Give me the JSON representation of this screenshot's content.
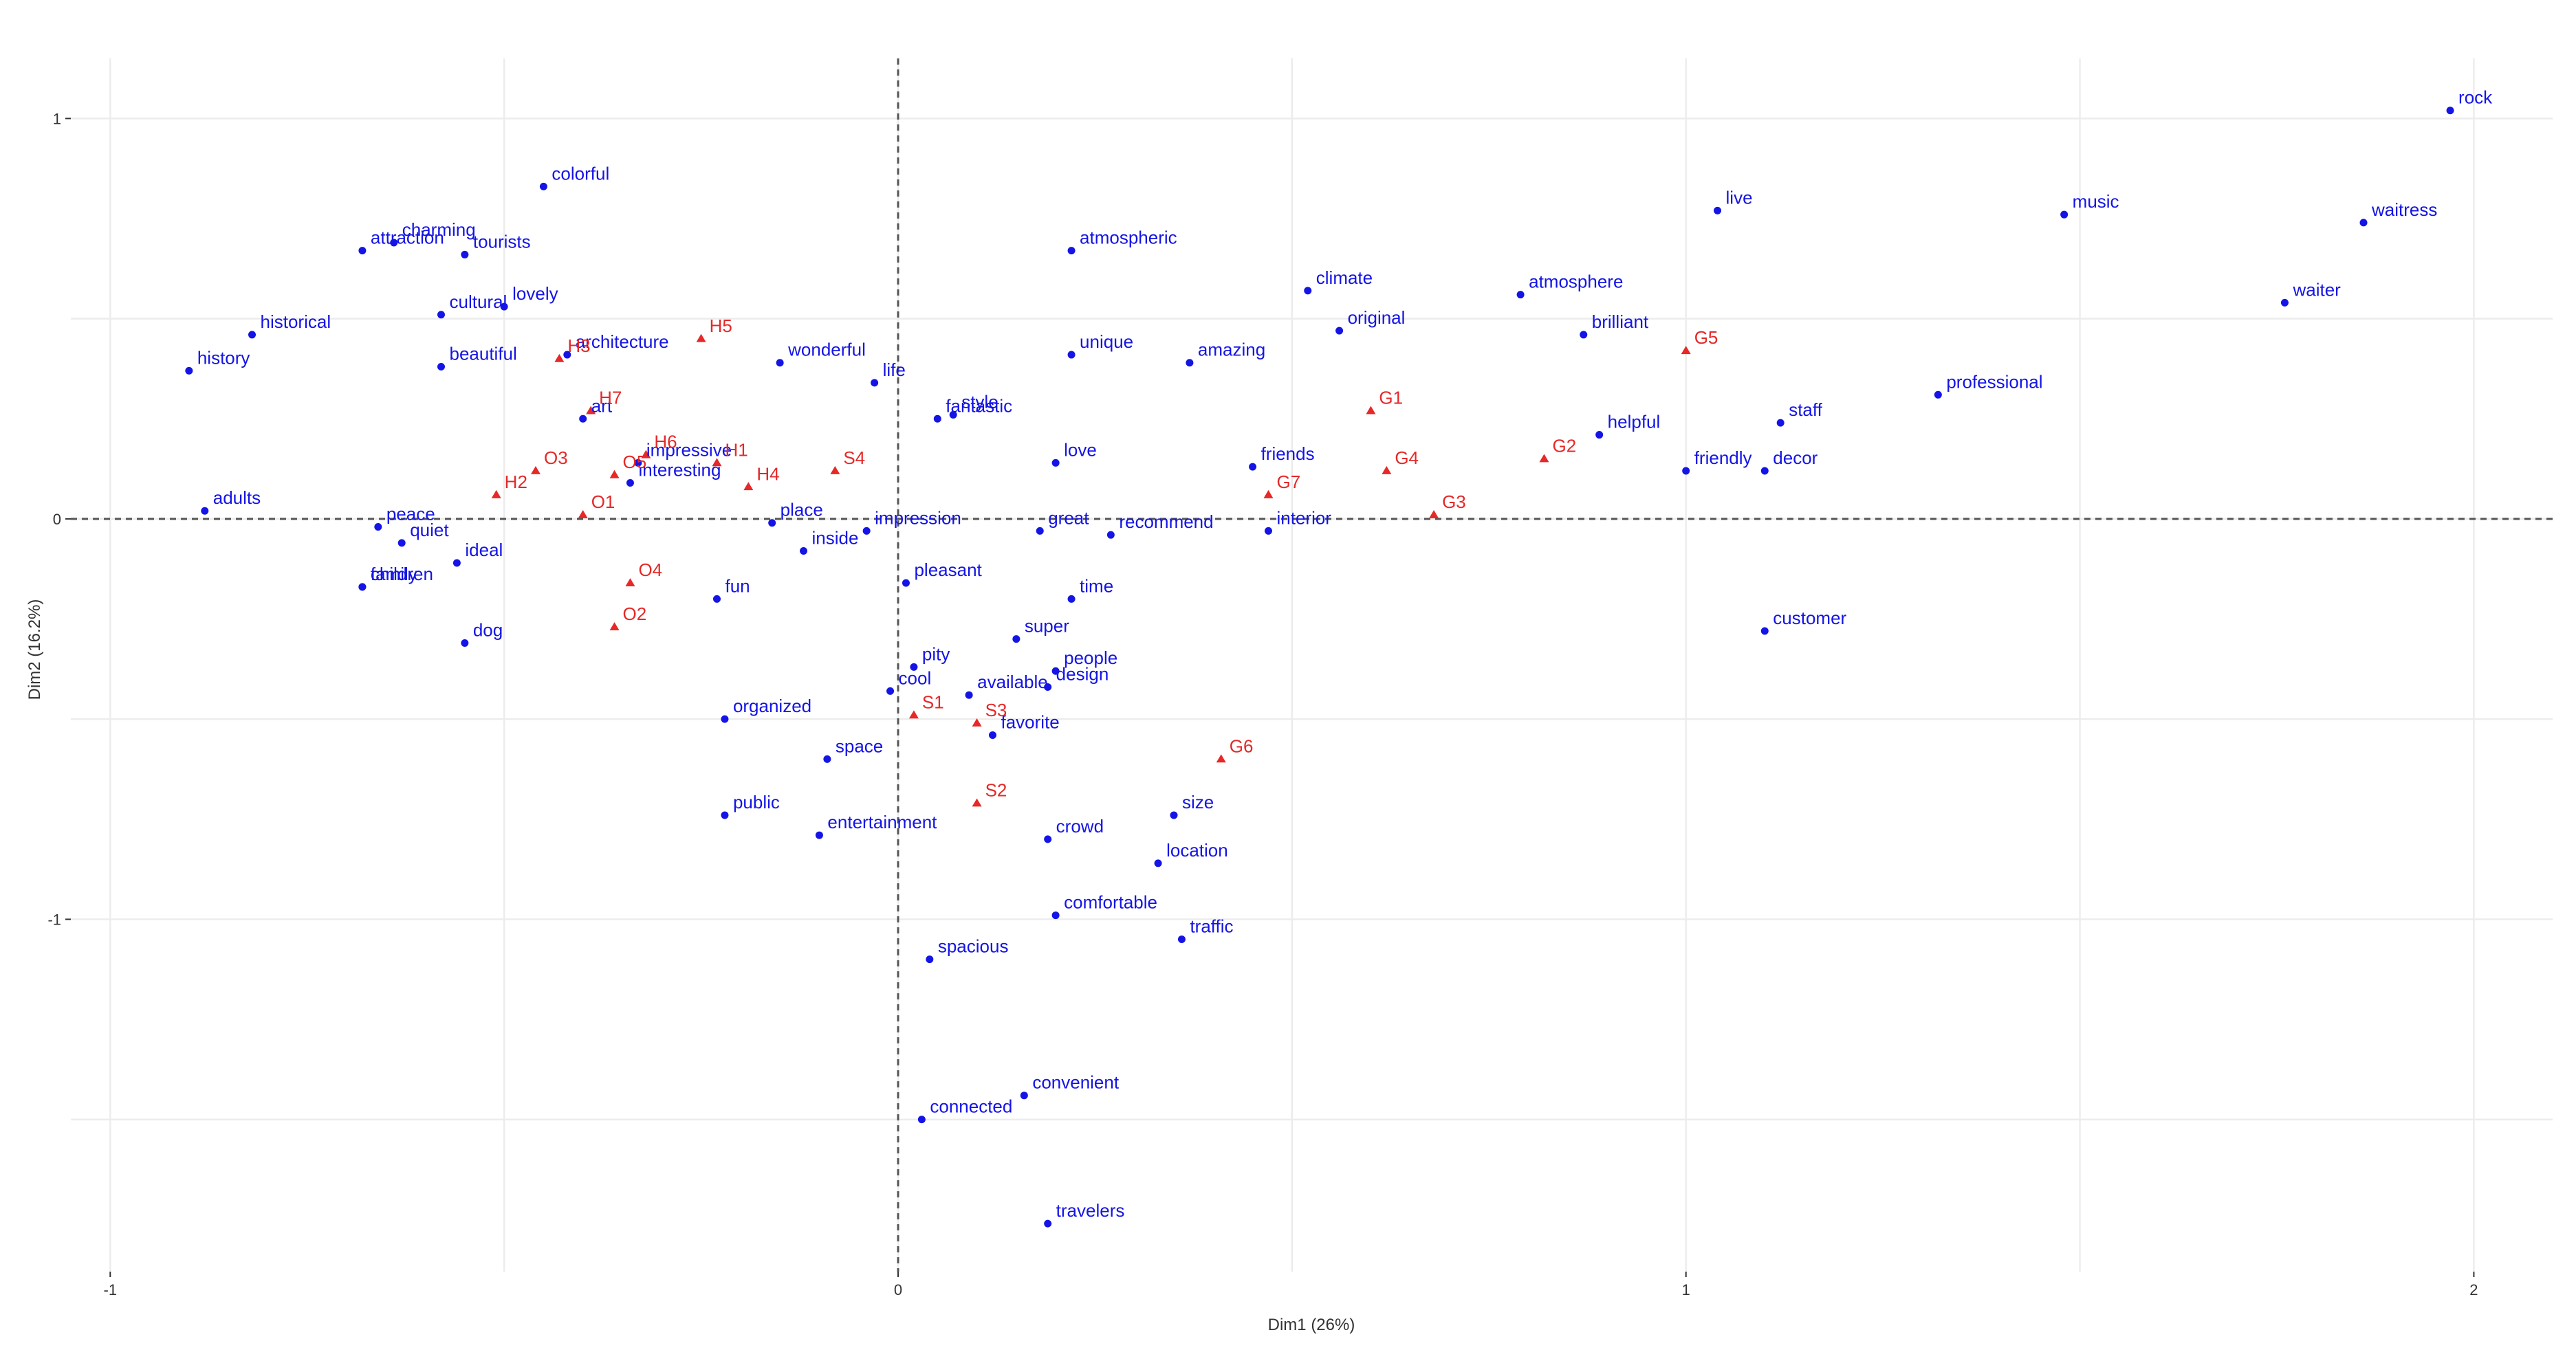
{
  "chart_data": {
    "type": "scatter",
    "title": "",
    "xlabel": "Dim1 (26%)",
    "ylabel": "Dim2 (16.2%)",
    "xlim": [
      -1.05,
      2.1
    ],
    "ylim": [
      -1.88,
      1.15
    ],
    "xticks": [
      -1,
      0,
      1,
      2
    ],
    "yticks": [
      -1,
      0,
      1
    ],
    "xtick_labels": [
      "-1",
      "0",
      "1",
      "2"
    ],
    "ytick_labels": [
      "-1",
      "0",
      "1"
    ],
    "grid": true,
    "zero_lines": true,
    "colors": {
      "words": "#1414e6",
      "groups": "#e62828"
    },
    "series": [
      {
        "marker": "circle",
        "color": "#1414e6",
        "points": [
          {
            "label": "rock",
            "x": 1.97,
            "y": 1.02
          },
          {
            "label": "music",
            "x": 1.48,
            "y": 0.76
          },
          {
            "label": "waitress",
            "x": 1.86,
            "y": 0.74
          },
          {
            "label": "waiter",
            "x": 1.76,
            "y": 0.54
          },
          {
            "label": "live",
            "x": 1.04,
            "y": 0.77
          },
          {
            "label": "professional",
            "x": 1.32,
            "y": 0.31
          },
          {
            "label": "staff",
            "x": 1.12,
            "y": 0.24
          },
          {
            "label": "decor",
            "x": 1.1,
            "y": 0.12
          },
          {
            "label": "friendly",
            "x": 1.0,
            "y": 0.12
          },
          {
            "label": "helpful",
            "x": 0.89,
            "y": 0.21
          },
          {
            "label": "brilliant",
            "x": 0.87,
            "y": 0.46
          },
          {
            "label": "atmosphere",
            "x": 0.79,
            "y": 0.56
          },
          {
            "label": "customer",
            "x": 1.1,
            "y": -0.28
          },
          {
            "label": "climate",
            "x": 0.52,
            "y": 0.57
          },
          {
            "label": "original",
            "x": 0.56,
            "y": 0.47
          },
          {
            "label": "amazing",
            "x": 0.37,
            "y": 0.39
          },
          {
            "label": "friends",
            "x": 0.45,
            "y": 0.13
          },
          {
            "label": "interior",
            "x": 0.47,
            "y": -0.03
          },
          {
            "label": "atmospheric",
            "x": 0.22,
            "y": 0.67
          },
          {
            "label": "unique",
            "x": 0.22,
            "y": 0.41
          },
          {
            "label": "love",
            "x": 0.2,
            "y": 0.14
          },
          {
            "label": "recommend",
            "x": 0.27,
            "y": -0.04
          },
          {
            "label": "great",
            "x": 0.18,
            "y": -0.03
          },
          {
            "label": "time",
            "x": 0.22,
            "y": -0.2
          },
          {
            "label": "super",
            "x": 0.15,
            "y": -0.3
          },
          {
            "label": "people",
            "x": 0.2,
            "y": -0.38
          },
          {
            "label": "design",
            "x": 0.19,
            "y": -0.42
          },
          {
            "label": "favorite",
            "x": 0.12,
            "y": -0.54
          },
          {
            "label": "crowd",
            "x": 0.19,
            "y": -0.8
          },
          {
            "label": "size",
            "x": 0.35,
            "y": -0.74
          },
          {
            "label": "location",
            "x": 0.33,
            "y": -0.86
          },
          {
            "label": "comfortable",
            "x": 0.2,
            "y": -0.99
          },
          {
            "label": "traffic",
            "x": 0.36,
            "y": -1.05
          },
          {
            "label": "spacious",
            "x": 0.04,
            "y": -1.1
          },
          {
            "label": "convenient",
            "x": 0.16,
            "y": -1.44
          },
          {
            "label": "connected",
            "x": 0.03,
            "y": -1.5
          },
          {
            "label": "travelers",
            "x": 0.19,
            "y": -1.76
          },
          {
            "label": "style",
            "x": 0.07,
            "y": 0.26
          },
          {
            "label": "fantastic",
            "x": 0.05,
            "y": 0.25
          },
          {
            "label": "life",
            "x": -0.03,
            "y": 0.34
          },
          {
            "label": "impression",
            "x": -0.04,
            "y": -0.03
          },
          {
            "label": "pleasant",
            "x": 0.01,
            "y": -0.16
          },
          {
            "label": "pity",
            "x": 0.02,
            "y": -0.37
          },
          {
            "label": "cool",
            "x": -0.01,
            "y": -0.43
          },
          {
            "label": "available",
            "x": 0.09,
            "y": -0.44
          },
          {
            "label": "space",
            "x": -0.09,
            "y": -0.6
          },
          {
            "label": "entertainment",
            "x": -0.1,
            "y": -0.79
          },
          {
            "label": "wonderful",
            "x": -0.15,
            "y": 0.39
          },
          {
            "label": "place",
            "x": -0.16,
            "y": -0.01
          },
          {
            "label": "inside",
            "x": -0.12,
            "y": -0.08
          },
          {
            "label": "fun",
            "x": -0.23,
            "y": -0.2
          },
          {
            "label": "organized",
            "x": -0.22,
            "y": -0.5
          },
          {
            "label": "public",
            "x": -0.22,
            "y": -0.74
          },
          {
            "label": "impressive",
            "x": -0.33,
            "y": 0.14
          },
          {
            "label": "interesting",
            "x": -0.34,
            "y": 0.09
          },
          {
            "label": "art",
            "x": -0.4,
            "y": 0.25
          },
          {
            "label": "architecture",
            "x": -0.42,
            "y": 0.41
          },
          {
            "label": "colorful",
            "x": -0.45,
            "y": 0.83
          },
          {
            "label": "tourists",
            "x": -0.55,
            "y": 0.66
          },
          {
            "label": "lovely",
            "x": -0.5,
            "y": 0.53
          },
          {
            "label": "cultural",
            "x": -0.58,
            "y": 0.51
          },
          {
            "label": "beautiful",
            "x": -0.58,
            "y": 0.38
          },
          {
            "label": "charming",
            "x": -0.64,
            "y": 0.69
          },
          {
            "label": "attraction",
            "x": -0.68,
            "y": 0.67
          },
          {
            "label": "historical",
            "x": -0.82,
            "y": 0.46
          },
          {
            "label": "history",
            "x": -0.9,
            "y": 0.37
          },
          {
            "label": "adults",
            "x": -0.88,
            "y": 0.02
          },
          {
            "label": "peace",
            "x": -0.66,
            "y": -0.02
          },
          {
            "label": "quiet",
            "x": -0.63,
            "y": -0.06
          },
          {
            "label": "family",
            "x": -0.68,
            "y": -0.17
          },
          {
            "label": "children",
            "x": -0.68,
            "y": -0.17
          },
          {
            "label": "ideal",
            "x": -0.56,
            "y": -0.11
          },
          {
            "label": "dog",
            "x": -0.55,
            "y": -0.31
          }
        ]
      },
      {
        "marker": "triangle",
        "color": "#e62828",
        "points": [
          {
            "label": "G1",
            "x": 0.6,
            "y": 0.27
          },
          {
            "label": "G2",
            "x": 0.82,
            "y": 0.15
          },
          {
            "label": "G3",
            "x": 0.68,
            "y": 0.01
          },
          {
            "label": "G4",
            "x": 0.62,
            "y": 0.12
          },
          {
            "label": "G5",
            "x": 1.0,
            "y": 0.42
          },
          {
            "label": "G6",
            "x": 0.41,
            "y": -0.6
          },
          {
            "label": "G7",
            "x": 0.47,
            "y": 0.06
          },
          {
            "label": "H1",
            "x": -0.23,
            "y": 0.14
          },
          {
            "label": "H2",
            "x": -0.51,
            "y": 0.06
          },
          {
            "label": "H3",
            "x": -0.43,
            "y": 0.4
          },
          {
            "label": "H4",
            "x": -0.19,
            "y": 0.08
          },
          {
            "label": "H5",
            "x": -0.25,
            "y": 0.45
          },
          {
            "label": "H6",
            "x": -0.32,
            "y": 0.16
          },
          {
            "label": "H7",
            "x": -0.39,
            "y": 0.27
          },
          {
            "label": "O1",
            "x": -0.4,
            "y": 0.01
          },
          {
            "label": "O2",
            "x": -0.36,
            "y": -0.27
          },
          {
            "label": "O3",
            "x": -0.46,
            "y": 0.12
          },
          {
            "label": "O4",
            "x": -0.34,
            "y": -0.16
          },
          {
            "label": "O5",
            "x": -0.36,
            "y": 0.11
          },
          {
            "label": "S1",
            "x": 0.02,
            "y": -0.49
          },
          {
            "label": "S2",
            "x": 0.1,
            "y": -0.71
          },
          {
            "label": "S3",
            "x": 0.1,
            "y": -0.51
          },
          {
            "label": "S4",
            "x": -0.08,
            "y": 0.12
          }
        ]
      }
    ]
  }
}
